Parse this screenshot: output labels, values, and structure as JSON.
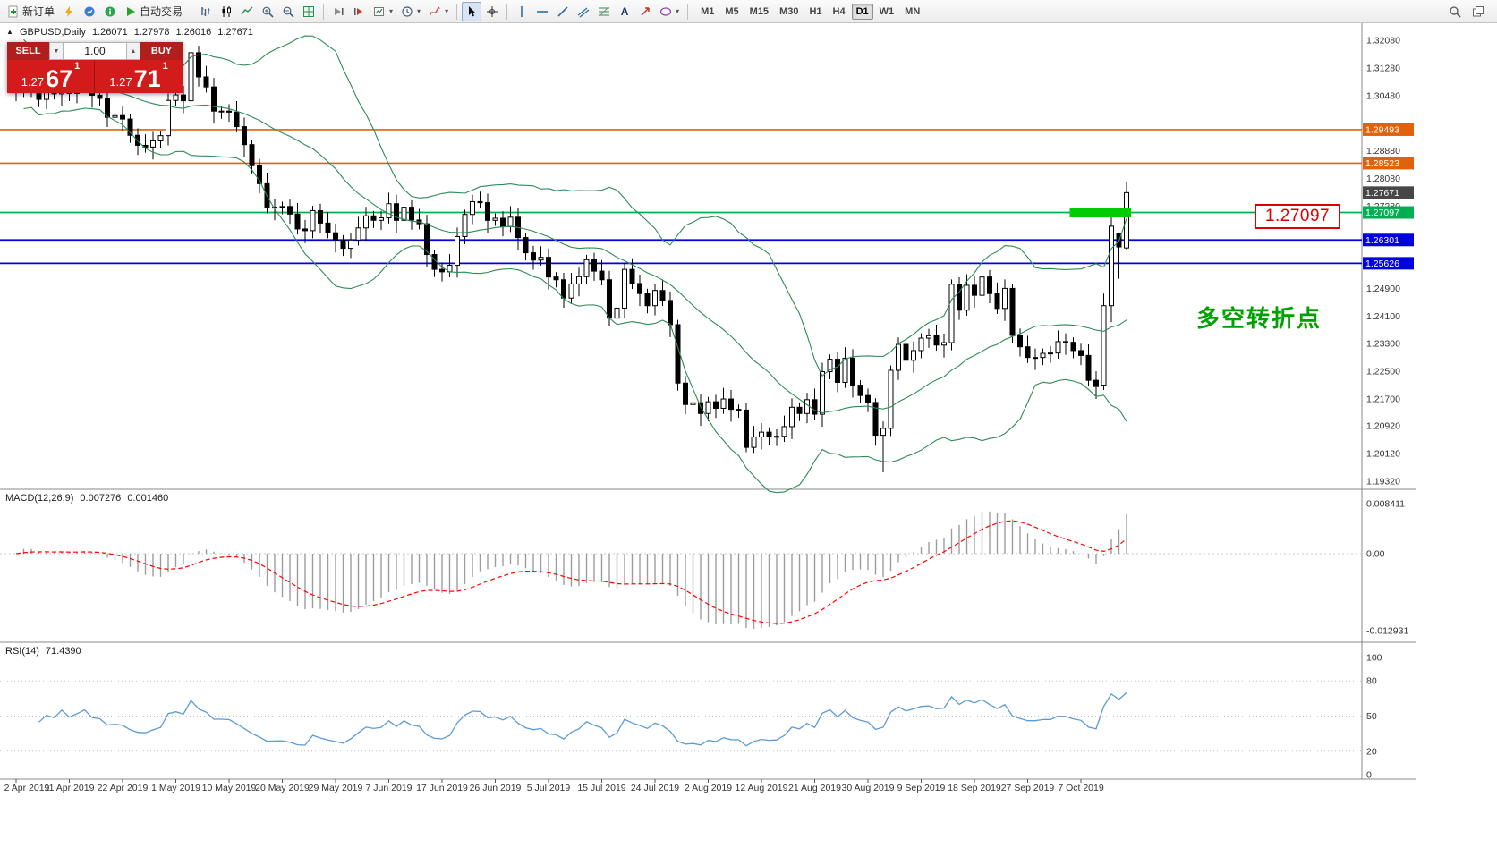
{
  "toolbar": {
    "new_order_label": "新订单",
    "autotrade_label": "自动交易",
    "timeframes": [
      "M1",
      "M5",
      "M15",
      "M30",
      "H1",
      "H4",
      "D1",
      "W1",
      "MN"
    ],
    "active_timeframe": "D1",
    "text_tool_label": "A"
  },
  "trade_panel": {
    "sell_label": "SELL",
    "buy_label": "BUY",
    "volume": "1.00",
    "sell_price": {
      "big": "1.27",
      "pips": "67",
      "pipette": "1"
    },
    "buy_price": {
      "big": "1.27",
      "pips": "71",
      "pipette": "1"
    }
  },
  "chart_header": {
    "symbol_period": "GBPUSD,Daily",
    "open": "1.26071",
    "high": "1.27978",
    "low": "1.26016",
    "close": "1.27671"
  },
  "macd_header": {
    "label": "MACD(12,26,9)",
    "main": "0.007276",
    "signal": "0.001460"
  },
  "rsi_header": {
    "label": "RSI(14)",
    "value": "71.4390"
  },
  "annotation": {
    "text": "多空转折点",
    "color": "#00A000"
  },
  "callout": {
    "text": "1.27097"
  },
  "chart_data": [
    {
      "type": "candlestick",
      "symbol": "GBPUSD",
      "period": "Daily",
      "y_range": [
        1.1932,
        1.3208
      ],
      "bollinger": {
        "period": 20,
        "deviation": 2,
        "color": "#2E8B57"
      },
      "x_tick_indices": [
        0,
        7,
        14,
        21,
        28,
        35,
        42,
        49,
        56,
        63,
        70,
        77,
        84,
        91,
        98,
        105,
        112,
        119,
        126,
        133,
        140
      ],
      "x_tick_labels": [
        "2 Apr 2019",
        "11 Apr 2019",
        "22 Apr 2019",
        "1 May 2019",
        "10 May 2019",
        "20 May 2019",
        "29 May 2019",
        "7 Jun 2019",
        "17 Jun 2019",
        "26 Jun 2019",
        "5 Jul 2019",
        "15 Jul 2019",
        "24 Jul 2019",
        "2 Aug 2019",
        "12 Aug 2019",
        "21 Aug 2019",
        "30 Aug 2019",
        "9 Sep 2019",
        "18 Sep 2019",
        "27 Sep 2019",
        "7 Oct 2019"
      ],
      "y_axis_labels": [
        {
          "text": "1.32080",
          "value": 1.3208
        },
        {
          "text": "1.31280",
          "value": 1.3128
        },
        {
          "text": "1.30480",
          "value": 1.3048
        },
        {
          "text": "1.28880",
          "value": 1.2888
        },
        {
          "text": "1.28080",
          "value": 1.2808
        },
        {
          "text": "1.27280",
          "value": 1.2728
        },
        {
          "text": "1.24900",
          "value": 1.249
        },
        {
          "text": "1.24100",
          "value": 1.241
        },
        {
          "text": "1.23300",
          "value": 1.233
        },
        {
          "text": "1.22500",
          "value": 1.225
        },
        {
          "text": "1.21700",
          "value": 1.217
        },
        {
          "text": "1.20920",
          "value": 1.2092
        },
        {
          "text": "1.20120",
          "value": 1.2012
        },
        {
          "text": "1.19320",
          "value": 1.1932
        }
      ],
      "levels": [
        {
          "price": 1.29493,
          "label": "1.29493",
          "color": "#E2620C"
        },
        {
          "price": 1.28523,
          "label": "1.28523",
          "color": "#E2620C"
        },
        {
          "price": 1.27097,
          "label": "1.27097",
          "color": "#00B050"
        },
        {
          "price": 1.26301,
          "label": "1.26301",
          "color": "#0000E0"
        },
        {
          "price": 1.25626,
          "label": "1.25626",
          "color": "#0000E0"
        }
      ],
      "current_price": {
        "price": 1.27671,
        "label": "1.27671",
        "color": "#474747"
      },
      "highlight_rect": {
        "price": 1.27097,
        "from_index": 139,
        "to_index": 146,
        "color": "#00CC00"
      },
      "ohlc": [
        [
          1.3103,
          1.3123,
          1.3032,
          1.306
        ],
        [
          1.306,
          1.3192,
          1.3044,
          1.316
        ],
        [
          1.316,
          1.3186,
          1.3044,
          1.308
        ],
        [
          1.308,
          1.3094,
          1.3015,
          1.3037
        ],
        [
          1.3037,
          1.3083,
          1.3009,
          1.3063
        ],
        [
          1.3063,
          1.3095,
          1.3037,
          1.3053
        ],
        [
          1.3053,
          1.3116,
          1.3017,
          1.309
        ],
        [
          1.309,
          1.3104,
          1.3032,
          1.3054
        ],
        [
          1.3054,
          1.3094,
          1.3026,
          1.3074
        ],
        [
          1.3074,
          1.3132,
          1.3058,
          1.31
        ],
        [
          1.31,
          1.3126,
          1.3013,
          1.3049
        ],
        [
          1.3049,
          1.3063,
          1.3018,
          1.304
        ],
        [
          1.304,
          1.306,
          1.2957,
          1.2985
        ],
        [
          1.2985,
          1.3022,
          1.2969,
          1.299
        ],
        [
          1.299,
          1.3016,
          1.2944,
          1.298
        ],
        [
          1.298,
          1.2994,
          1.2911,
          1.2933
        ],
        [
          1.2933,
          1.2953,
          1.2876,
          1.2904
        ],
        [
          1.2904,
          1.2936,
          1.2883,
          1.2899
        ],
        [
          1.2899,
          1.2943,
          1.2863,
          1.2917
        ],
        [
          1.2917,
          1.2946,
          1.2895,
          1.2932
        ],
        [
          1.2932,
          1.3054,
          1.2904,
          1.3034
        ],
        [
          1.3034,
          1.3082,
          1.3018,
          1.305
        ],
        [
          1.305,
          1.3076,
          1.2997,
          1.3033
        ],
        [
          1.3033,
          1.3176,
          1.3011,
          1.3172
        ],
        [
          1.3172,
          1.3192,
          1.3074,
          1.3102
        ],
        [
          1.3102,
          1.3134,
          1.3057,
          1.3073
        ],
        [
          1.3073,
          1.3099,
          1.2967,
          1.3003
        ],
        [
          1.3003,
          1.3017,
          1.2981,
          1.3003
        ],
        [
          1.3003,
          1.3023,
          1.2972,
          1.3
        ],
        [
          1.3,
          1.3032,
          1.2942,
          1.2958
        ],
        [
          1.2958,
          1.2984,
          1.287,
          1.2906
        ],
        [
          1.2906,
          1.292,
          1.2823,
          1.2845
        ],
        [
          1.2845,
          1.2865,
          1.2765,
          1.2793
        ],
        [
          1.2793,
          1.2825,
          1.2707,
          1.2723
        ],
        [
          1.2723,
          1.2749,
          1.2687,
          1.2725
        ],
        [
          1.2725,
          1.2741,
          1.2705,
          1.2727
        ],
        [
          1.2727,
          1.2747,
          1.2677,
          1.2705
        ],
        [
          1.2705,
          1.2737,
          1.2646,
          1.2662
        ],
        [
          1.2662,
          1.2688,
          1.2621,
          1.2657
        ],
        [
          1.2657,
          1.2729,
          1.2635,
          1.2715
        ],
        [
          1.2715,
          1.2735,
          1.2651,
          1.2679
        ],
        [
          1.2679,
          1.2711,
          1.2635,
          1.2651
        ],
        [
          1.2651,
          1.2677,
          1.2594,
          1.263
        ],
        [
          1.263,
          1.2644,
          1.2584,
          1.2606
        ],
        [
          1.2606,
          1.265,
          1.2578,
          1.263
        ],
        [
          1.263,
          1.2697,
          1.2614,
          1.2665
        ],
        [
          1.2665,
          1.2726,
          1.2629,
          1.27
        ],
        [
          1.27,
          1.2714,
          1.2665,
          1.2687
        ],
        [
          1.2687,
          1.2714,
          1.2659,
          1.2694
        ],
        [
          1.2694,
          1.2767,
          1.2678,
          1.2735
        ],
        [
          1.2735,
          1.2761,
          1.2651,
          1.2687
        ],
        [
          1.2687,
          1.2739,
          1.2665,
          1.2725
        ],
        [
          1.2725,
          1.2745,
          1.266,
          1.2688
        ],
        [
          1.2688,
          1.272,
          1.2661,
          1.2677
        ],
        [
          1.2677,
          1.2703,
          1.2552,
          1.2588
        ],
        [
          1.2588,
          1.2602,
          1.2523,
          1.2545
        ],
        [
          1.2545,
          1.2565,
          1.251,
          1.2538
        ],
        [
          1.2538,
          1.2589,
          1.2522,
          1.2557
        ],
        [
          1.2557,
          1.2666,
          1.2521,
          1.264
        ],
        [
          1.264,
          1.2718,
          1.2618,
          1.2704
        ],
        [
          1.2704,
          1.2761,
          1.2676,
          1.2741
        ],
        [
          1.2741,
          1.277,
          1.2722,
          1.2738
        ],
        [
          1.2738,
          1.2764,
          1.2651,
          1.2687
        ],
        [
          1.2687,
          1.2707,
          1.2671,
          1.2693
        ],
        [
          1.2693,
          1.2713,
          1.2641,
          1.2669
        ],
        [
          1.2669,
          1.2728,
          1.2653,
          1.2696
        ],
        [
          1.2696,
          1.2722,
          1.2601,
          1.2637
        ],
        [
          1.2637,
          1.2651,
          1.2571,
          1.2593
        ],
        [
          1.2593,
          1.2613,
          1.2544,
          1.2572
        ],
        [
          1.2572,
          1.2612,
          1.2556,
          1.258
        ],
        [
          1.258,
          1.2606,
          1.2487,
          1.2523
        ],
        [
          1.2523,
          1.2537,
          1.2493,
          1.2515
        ],
        [
          1.2515,
          1.2535,
          1.2434,
          1.2462
        ],
        [
          1.2462,
          1.2535,
          1.2446,
          1.2503
        ],
        [
          1.2503,
          1.255,
          1.2467,
          1.2524
        ],
        [
          1.2524,
          1.2587,
          1.2502,
          1.2573
        ],
        [
          1.2573,
          1.2593,
          1.2512,
          1.254
        ],
        [
          1.254,
          1.2572,
          1.2499,
          1.2515
        ],
        [
          1.2515,
          1.2541,
          1.2382,
          1.2404
        ],
        [
          1.2404,
          1.2447,
          1.2382,
          1.2433
        ],
        [
          1.2433,
          1.2565,
          1.2405,
          1.2545
        ],
        [
          1.2545,
          1.2577,
          1.2488,
          1.2504
        ],
        [
          1.2504,
          1.253,
          1.2439,
          1.2475
        ],
        [
          1.2475,
          1.2489,
          1.2418,
          1.244
        ],
        [
          1.244,
          1.2504,
          1.2412,
          1.2484
        ],
        [
          1.2484,
          1.2516,
          1.2439,
          1.2455
        ],
        [
          1.2455,
          1.2481,
          1.2349,
          1.2385
        ],
        [
          1.2385,
          1.2399,
          1.2194,
          1.2216
        ],
        [
          1.2216,
          1.2236,
          1.2126,
          1.2154
        ],
        [
          1.2154,
          1.2191,
          1.2138,
          1.2159
        ],
        [
          1.2159,
          1.2185,
          1.2092,
          1.2128
        ],
        [
          1.2128,
          1.2176,
          1.2106,
          1.2162
        ],
        [
          1.2162,
          1.2182,
          1.2115,
          1.2143
        ],
        [
          1.2143,
          1.2202,
          1.2127,
          1.217
        ],
        [
          1.217,
          1.2196,
          1.2104,
          1.214
        ],
        [
          1.214,
          1.2154,
          1.2116,
          1.2138
        ],
        [
          1.2138,
          1.2158,
          1.2016,
          1.203
        ],
        [
          1.203,
          1.2092,
          1.2014,
          1.206
        ],
        [
          1.206,
          1.21,
          1.2024,
          1.2074
        ],
        [
          1.2074,
          1.2088,
          1.2038,
          1.206
        ],
        [
          1.206,
          1.2082,
          1.2034,
          1.2062
        ],
        [
          1.2062,
          1.2122,
          1.2046,
          1.209
        ],
        [
          1.209,
          1.2172,
          1.2054,
          1.2146
        ],
        [
          1.2146,
          1.216,
          1.2106,
          1.2128
        ],
        [
          1.2128,
          1.2188,
          1.21,
          1.2168
        ],
        [
          1.2168,
          1.22,
          1.211,
          1.2126
        ],
        [
          1.2126,
          1.2275,
          1.209,
          1.2249
        ],
        [
          1.2249,
          1.2299,
          1.2227,
          1.2285
        ],
        [
          1.2285,
          1.2305,
          1.219,
          1.2218
        ],
        [
          1.2218,
          1.232,
          1.2202,
          1.2288
        ],
        [
          1.2288,
          1.2314,
          1.2174,
          1.221
        ],
        [
          1.221,
          1.2224,
          1.2158,
          1.218
        ],
        [
          1.218,
          1.22,
          1.2132,
          1.216
        ],
        [
          1.216,
          1.2172,
          1.2035,
          1.2065
        ],
        [
          1.2065,
          1.2105,
          1.1958,
          1.2085
        ],
        [
          1.2085,
          1.2267,
          1.2063,
          1.2253
        ],
        [
          1.2253,
          1.2348,
          1.2225,
          1.2328
        ],
        [
          1.2328,
          1.236,
          1.2266,
          1.2282
        ],
        [
          1.2282,
          1.2336,
          1.2246,
          1.231
        ],
        [
          1.231,
          1.236,
          1.2288,
          1.2346
        ],
        [
          1.2346,
          1.2373,
          1.2318,
          1.2353
        ],
        [
          1.2353,
          1.2385,
          1.231,
          1.2326
        ],
        [
          1.2326,
          1.2359,
          1.229,
          1.2333
        ],
        [
          1.2333,
          1.2516,
          1.2311,
          1.2502
        ],
        [
          1.2502,
          1.2522,
          1.2399,
          1.2427
        ],
        [
          1.2427,
          1.2531,
          1.2411,
          1.2499
        ],
        [
          1.2499,
          1.2525,
          1.2434,
          1.247
        ],
        [
          1.247,
          1.2582,
          1.2448,
          1.2523
        ],
        [
          1.2523,
          1.2543,
          1.2447,
          1.2475
        ],
        [
          1.2475,
          1.2507,
          1.2416,
          1.2432
        ],
        [
          1.2432,
          1.2516,
          1.2396,
          1.249
        ],
        [
          1.249,
          1.2504,
          1.2332,
          1.2354
        ],
        [
          1.2354,
          1.2374,
          1.2293,
          1.2321
        ],
        [
          1.2321,
          1.2353,
          1.2274,
          1.229
        ],
        [
          1.229,
          1.2316,
          1.2254,
          1.229
        ],
        [
          1.229,
          1.2316,
          1.2268,
          1.2302
        ],
        [
          1.2302,
          1.2323,
          1.2275,
          1.2303
        ],
        [
          1.2303,
          1.2368,
          1.2287,
          1.2336
        ],
        [
          1.2336,
          1.236,
          1.2298,
          1.2334
        ],
        [
          1.2334,
          1.2348,
          1.2288,
          1.231
        ],
        [
          1.231,
          1.233,
          1.2268,
          1.2296
        ],
        [
          1.2296,
          1.2328,
          1.2208,
          1.2224
        ],
        [
          1.2224,
          1.225,
          1.217,
          1.2206
        ],
        [
          1.221,
          1.2475,
          1.2196,
          1.244
        ],
        [
          1.244,
          1.2708,
          1.2392,
          1.267
        ],
        [
          1.2648,
          1.2652,
          1.2518,
          1.261
        ],
        [
          1.26071,
          1.27978,
          1.26016,
          1.27671
        ]
      ]
    },
    {
      "type": "macd-histogram",
      "params": "12,26,9",
      "histogram_color": "#9C9C9C",
      "signal_color": "#FF0000",
      "axis_labels": [
        {
          "text": "0.008411",
          "value": 0.008411
        },
        {
          "text": "0.00",
          "value": 0
        },
        {
          "text": "-0.012931",
          "value": -0.012931
        }
      ]
    },
    {
      "type": "rsi-line",
      "params": "14",
      "color": "#5B9BD5",
      "current": 71.439,
      "levels": [
        80,
        50,
        20
      ],
      "axis_labels": [
        {
          "text": "100",
          "value": 100
        },
        {
          "text": "80",
          "value": 80
        },
        {
          "text": "50",
          "value": 50
        },
        {
          "text": "20",
          "value": 20
        },
        {
          "text": "0",
          "value": 0
        }
      ]
    }
  ]
}
